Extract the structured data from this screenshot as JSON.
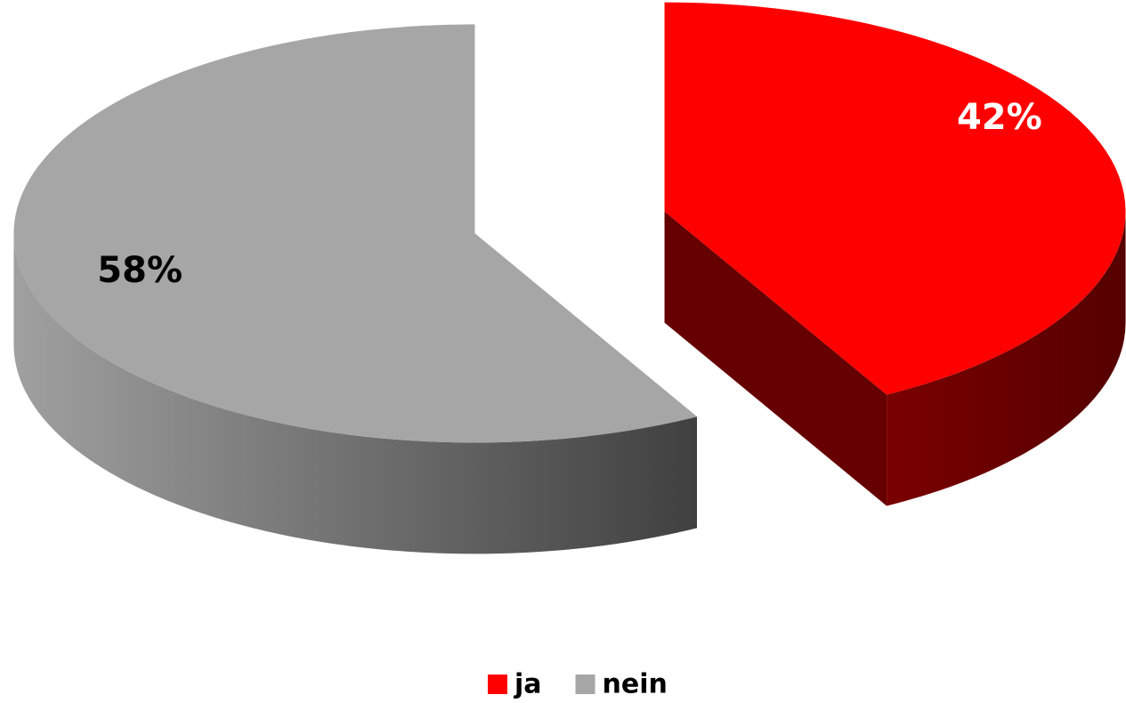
{
  "chart_data": {
    "type": "pie",
    "categories": [
      "ja",
      "nein"
    ],
    "values": [
      42,
      58
    ],
    "value_labels": [
      "42%",
      "58%"
    ],
    "colors": [
      "#ff0000",
      "#a6a6a6"
    ],
    "side_colors": [
      "#660000",
      "#4a4a4a"
    ],
    "label_colors": [
      "#ffffff",
      "#000000"
    ],
    "legend": "bottom"
  }
}
